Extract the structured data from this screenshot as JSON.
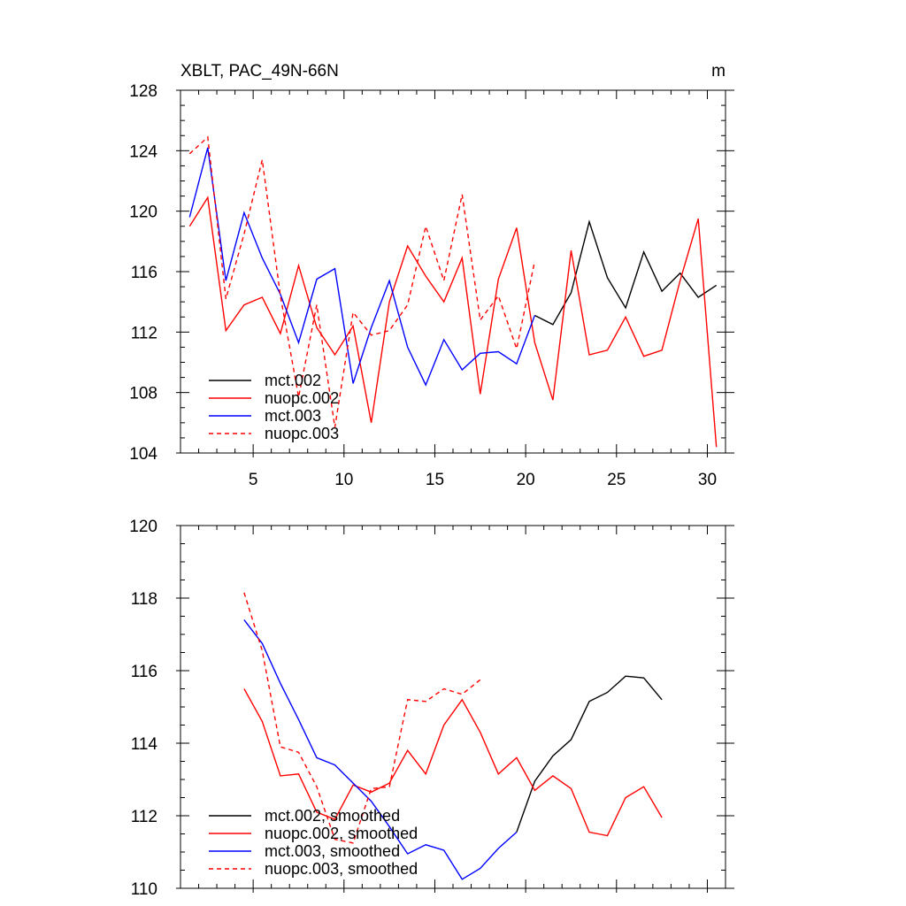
{
  "chart_data": [
    {
      "type": "line",
      "title": "XBLT, PAC_49N-66N",
      "units": "m",
      "xlim": [
        1,
        31
      ],
      "ylim": [
        104,
        128
      ],
      "x_ticks": [
        5,
        10,
        15,
        20,
        25,
        30
      ],
      "x_tick_labels": [
        "5",
        "10",
        "15",
        "20",
        "25",
        "30"
      ],
      "y_ticks": [
        104,
        108,
        112,
        116,
        120,
        124,
        128
      ],
      "y_tick_labels": [
        "104",
        "108",
        "112",
        "116",
        "120",
        "124",
        "128"
      ],
      "legend": "bottom-left",
      "series": [
        {
          "name": "mct.002",
          "color": "#000000",
          "dash": "solid",
          "x": [
            20.5,
            21.5,
            22.5,
            23.5,
            24.5,
            25.5,
            26.5,
            27.5,
            28.5,
            29.5,
            30.5
          ],
          "values": [
            113.1,
            112.5,
            114.6,
            119.3,
            115.6,
            113.6,
            117.3,
            114.7,
            115.9,
            114.3,
            115.1
          ]
        },
        {
          "name": "nuopc.002",
          "color": "#ff0000",
          "dash": "solid",
          "x": [
            1.5,
            2.5,
            3.5,
            4.5,
            5.5,
            6.5,
            7.5,
            8.5,
            9.5,
            10.5,
            11.5,
            12.5,
            13.5,
            14.5,
            15.5,
            16.5,
            17.5,
            18.5,
            19.5,
            20.5,
            21.5,
            22.5,
            23.5,
            24.5,
            25.5,
            26.5,
            27.5,
            28.5,
            29.5,
            30.5
          ],
          "values": [
            119.0,
            120.9,
            112.1,
            113.8,
            114.3,
            111.9,
            116.4,
            112.3,
            110.5,
            112.4,
            106.0,
            114.0,
            117.7,
            115.7,
            114.0,
            116.9,
            107.9,
            115.5,
            118.9,
            111.3,
            107.5,
            117.4,
            110.5,
            110.8,
            113.0,
            110.4,
            110.8,
            115.4,
            119.5,
            104.4
          ]
        },
        {
          "name": "mct.003",
          "color": "#0000ff",
          "dash": "solid",
          "x": [
            1.5,
            2.5,
            3.5,
            4.5,
            5.5,
            6.5,
            7.5,
            8.5,
            9.5,
            10.5,
            11.5,
            12.5,
            13.5,
            14.5,
            15.5,
            16.5,
            17.5,
            18.5,
            19.5,
            20.5
          ],
          "values": [
            119.6,
            124.2,
            115.4,
            119.9,
            116.9,
            114.5,
            111.3,
            115.5,
            116.2,
            108.6,
            112.3,
            115.4,
            111.0,
            108.5,
            111.5,
            109.5,
            110.6,
            110.7,
            109.9,
            113.1
          ]
        },
        {
          "name": "nuopc.003",
          "color": "#ff0000",
          "dash": "dashed",
          "x": [
            1.5,
            2.5,
            3.5,
            4.5,
            5.5,
            6.5,
            7.5,
            8.5,
            9.5,
            10.5,
            11.5,
            12.5,
            13.5,
            14.5,
            15.5,
            16.5,
            17.5,
            18.5,
            19.5,
            20.5
          ],
          "values": [
            123.8,
            124.9,
            114.2,
            118.5,
            123.4,
            114.4,
            107.7,
            113.8,
            105.7,
            113.3,
            111.8,
            112.1,
            113.8,
            119.0,
            115.4,
            121.1,
            112.8,
            114.4,
            110.9,
            116.7
          ]
        }
      ]
    },
    {
      "type": "line",
      "title": "",
      "xlim": [
        1,
        31
      ],
      "ylim": [
        110,
        120
      ],
      "x_ticks": [
        5,
        10,
        15,
        20,
        25,
        30
      ],
      "x_tick_labels": [],
      "y_ticks": [
        110,
        112,
        114,
        116,
        118,
        120
      ],
      "y_tick_labels": [
        "110",
        "112",
        "114",
        "116",
        "118",
        "120"
      ],
      "legend": "bottom-left",
      "series": [
        {
          "name": "mct.002, smoothed",
          "color": "#000000",
          "dash": "solid",
          "x": [
            19.5,
            20.5,
            21.5,
            22.5,
            23.5,
            24.5,
            25.5,
            26.5,
            27.5
          ],
          "values": [
            111.55,
            112.95,
            113.65,
            114.1,
            115.15,
            115.4,
            115.85,
            115.8,
            115.2
          ]
        },
        {
          "name": "nuopc.002, smoothed",
          "color": "#ff0000",
          "dash": "solid",
          "x": [
            4.5,
            5.5,
            6.5,
            7.5,
            8.5,
            9.5,
            10.5,
            11.5,
            12.5,
            13.5,
            14.5,
            15.5,
            16.5,
            17.5,
            18.5,
            19.5,
            20.5,
            21.5,
            22.5,
            23.5,
            24.5,
            25.5,
            26.5,
            27.5
          ],
          "values": [
            115.5,
            114.6,
            113.1,
            113.15,
            112.1,
            111.9,
            112.85,
            112.65,
            112.9,
            113.8,
            113.15,
            114.5,
            115.2,
            114.3,
            113.15,
            113.6,
            112.7,
            113.1,
            112.75,
            111.55,
            111.45,
            112.5,
            112.8,
            111.95
          ]
        },
        {
          "name": "mct.003, smoothed",
          "color": "#0000ff",
          "dash": "solid",
          "x": [
            4.5,
            5.5,
            6.5,
            7.5,
            8.5,
            9.5,
            10.5,
            11.5,
            12.5,
            13.5,
            14.5,
            15.5,
            16.5,
            17.5,
            18.5,
            19.5
          ],
          "values": [
            117.4,
            116.75,
            115.65,
            114.65,
            113.6,
            113.4,
            112.9,
            112.4,
            111.7,
            110.95,
            111.2,
            111.05,
            110.25,
            110.55,
            111.1,
            111.55
          ]
        },
        {
          "name": "nuopc.003, smoothed",
          "color": "#ff0000",
          "dash": "dashed",
          "x": [
            4.5,
            5.5,
            6.5,
            7.5,
            8.5,
            9.5,
            10.5,
            11.5,
            12.5,
            13.5,
            14.5,
            15.5,
            16.5,
            17.5
          ],
          "values": [
            118.15,
            116.55,
            113.9,
            113.75,
            112.8,
            111.35,
            111.25,
            112.75,
            112.8,
            115.2,
            115.15,
            115.5,
            115.35,
            115.75
          ]
        }
      ]
    }
  ]
}
